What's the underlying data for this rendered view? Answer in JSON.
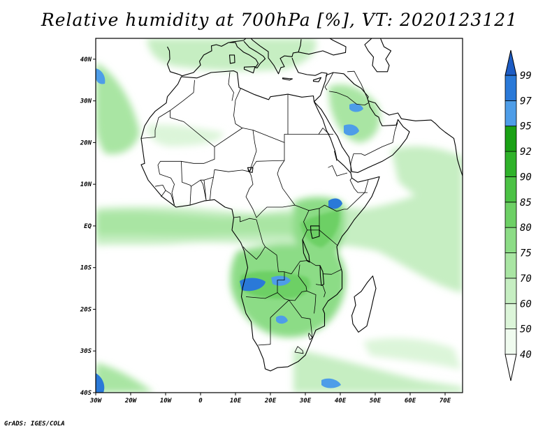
{
  "title": "Relative humidity at 700hPa [%], VT: 2020123121",
  "credit": "GrADS: IGES/COLA",
  "map": {
    "lon_range": [
      -30,
      75
    ],
    "lat_range": [
      -40,
      45
    ],
    "lon_ticks": [
      "30W",
      "20W",
      "10W",
      "0",
      "10E",
      "20E",
      "30E",
      "40E",
      "50E",
      "60E",
      "70E"
    ],
    "lat_ticks": [
      "40S",
      "30S",
      "20S",
      "10S",
      "EQ",
      "10N",
      "20N",
      "30N",
      "40N"
    ]
  },
  "colorbar": {
    "labels": [
      "40",
      "50",
      "60",
      "70",
      "75",
      "80",
      "85",
      "90",
      "92",
      "95",
      "97",
      "99"
    ],
    "colors": [
      "#f0fbef",
      "#dcf5d9",
      "#c6eec2",
      "#a9e5a3",
      "#8cdc86",
      "#6dd065",
      "#4cc245",
      "#2fb22a",
      "#1aa115",
      "#4e9de8",
      "#2a79d8",
      "#1d5cc4"
    ]
  }
}
